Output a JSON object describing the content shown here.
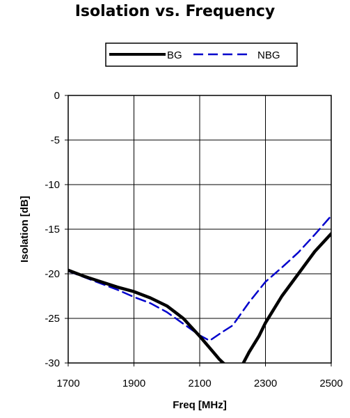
{
  "chart_data": {
    "type": "line",
    "title": "Isolation vs. Frequency",
    "xlabel": "Freq [MHz]",
    "ylabel": "Isolation [dB]",
    "xlim": [
      1700,
      2500
    ],
    "ylim": [
      -30,
      0
    ],
    "xticks": [
      1700,
      1900,
      2100,
      2300,
      2500
    ],
    "yticks": [
      0,
      -5,
      -10,
      -15,
      -20,
      -25,
      -30
    ],
    "grid": true,
    "legend_position": "top",
    "series": [
      {
        "name": "BG",
        "color": "#000000",
        "style": "solid",
        "x": [
          1700,
          1750,
          1800,
          1850,
          1900,
          1950,
          2000,
          2050,
          2100,
          2130,
          2160,
          2180,
          2200,
          2230,
          2250,
          2280,
          2300,
          2350,
          2400,
          2450,
          2500
        ],
        "y": [
          -19.6,
          -20.3,
          -20.9,
          -21.5,
          -22.0,
          -22.7,
          -23.6,
          -25.0,
          -27.0,
          -28.3,
          -29.6,
          -30.3,
          -30.6,
          -30.2,
          -28.8,
          -27.0,
          -25.5,
          -22.5,
          -20.0,
          -17.5,
          -15.5
        ]
      },
      {
        "name": "NBG",
        "color": "#0000cc",
        "style": "dashed",
        "x": [
          1700,
          1750,
          1800,
          1850,
          1900,
          1950,
          2000,
          2050,
          2100,
          2130,
          2170,
          2200,
          2250,
          2300,
          2350,
          2400,
          2450,
          2500
        ],
        "y": [
          -19.7,
          -20.4,
          -21.1,
          -21.8,
          -22.6,
          -23.3,
          -24.3,
          -25.6,
          -26.9,
          -27.5,
          -26.5,
          -25.8,
          -23.2,
          -20.9,
          -19.3,
          -17.6,
          -15.6,
          -13.5
        ]
      }
    ]
  }
}
